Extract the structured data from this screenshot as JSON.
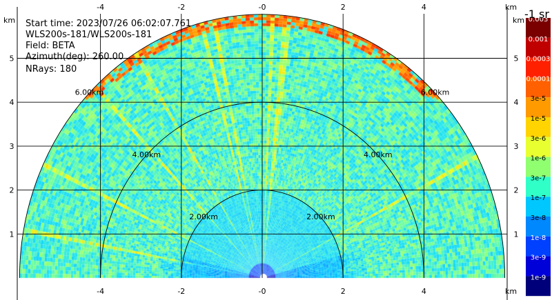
{
  "info": {
    "start_time": "Start time: 2023/07/26 06:02:07.761",
    "instrument": "WLS200s-181/WLS200s-181",
    "field": "Field: BETA",
    "azimuth": "Azimuth(deg): 260.00",
    "nrays": "NRays: 180"
  },
  "colorbar": {
    "unit_label": "-1 sr",
    "labels": [
      "0.003",
      "0.001",
      "0.0003",
      "0.0001",
      "3e-5",
      "1e-5",
      "3e-6",
      "1e-6",
      "3e-7",
      "1e-7",
      "3e-8",
      "1e-8",
      "3e-9",
      "1e-9"
    ],
    "colors": [
      "#7a0000",
      "#c00000",
      "#ff2000",
      "#ff6000",
      "#ff9a00",
      "#ffd400",
      "#e8ff30",
      "#90ff70",
      "#30ffc8",
      "#00c8ff",
      "#0088ff",
      "#0040ff",
      "#0000d8",
      "#00007a"
    ]
  },
  "chart_data": {
    "type": "heatmap",
    "title": "",
    "x_unit": "km",
    "y_unit": "km",
    "xlim": [
      -6.05,
      6.05
    ],
    "ylim": [
      0,
      5.95
    ],
    "x_ticks": [
      -4,
      -2,
      0,
      2,
      4
    ],
    "y_ticks": [
      1,
      2,
      3,
      4,
      5
    ],
    "x_tick_labels": [
      "-4",
      "-2",
      "-0",
      "2",
      "4"
    ],
    "y_tick_labels": [
      "1",
      "2",
      "3",
      "4",
      "5"
    ],
    "grid": true,
    "range_rings_km": [
      2,
      4,
      6
    ],
    "range_ring_labels": [
      "2.00km",
      "4.00km",
      "6.00km"
    ],
    "max_range_km": 6.0,
    "colorscale": "log10 BETA, 1e-9 to 0.003 sr^-1 m^-1",
    "features": [
      {
        "name": "aerosol layer",
        "range_km": 5.85,
        "approx_log10_beta": -4.3
      },
      {
        "name": "background",
        "approx_log10_beta": -6.5
      }
    ]
  }
}
